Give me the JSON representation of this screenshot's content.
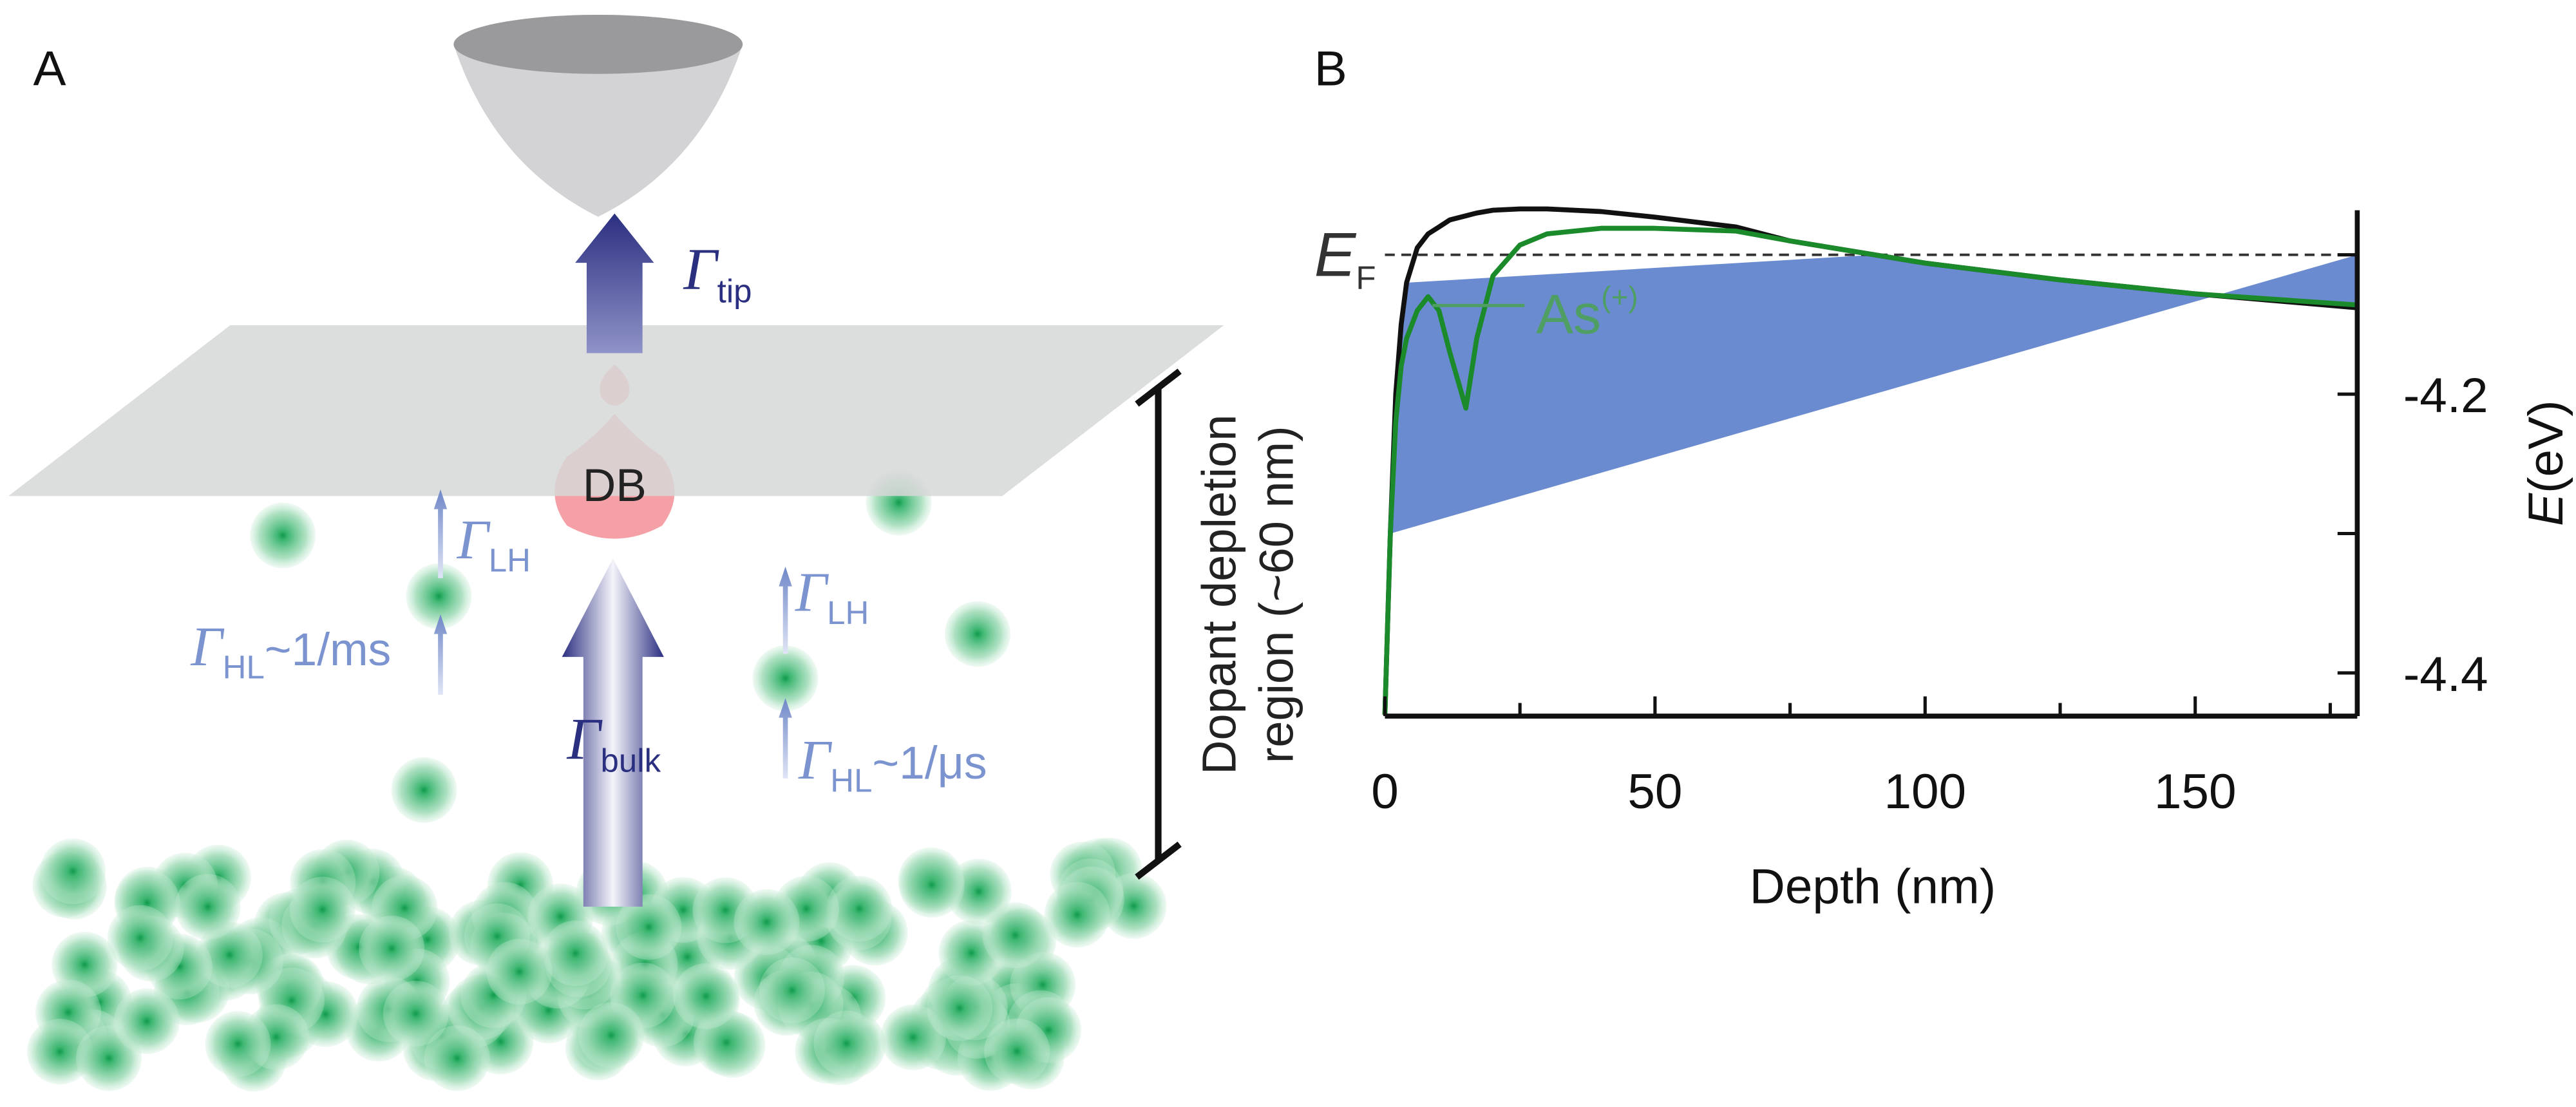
{
  "panel_a": {
    "label": "A",
    "db": "DB",
    "gamma_tip": {
      "symbol": "Γ",
      "subscript": "tip"
    },
    "gamma_bulk": {
      "symbol": "Γ",
      "subscript": "bulk"
    },
    "gamma_lh_left": {
      "symbol": "Γ",
      "subscript": "LH"
    },
    "gamma_hl_left": {
      "symbol": "Γ",
      "subscript": "HL",
      "rate": "~1/ms"
    },
    "gamma_lh_right": {
      "symbol": "Γ",
      "subscript": "LH"
    },
    "gamma_hl_right": {
      "symbol": "Γ",
      "subscript": "HL",
      "rate": "~1/μs"
    },
    "depletion_label": [
      "Dopant depletion",
      "region (~60 nm)"
    ]
  },
  "chart_data": {
    "type": "line",
    "panel_label": "B",
    "x_label": "Depth (nm)",
    "y_label": {
      "symbol": "E",
      "unit": "(eV)"
    },
    "fermi_label": {
      "symbol": "E",
      "subscript": "F"
    },
    "fermi_level": -4.1,
    "annotation": {
      "text": "As",
      "superscript": "(+)"
    },
    "x": [
      0,
      1,
      2,
      3,
      4,
      6,
      8,
      10,
      12,
      15,
      17,
      20,
      25,
      30,
      40,
      50,
      65,
      75,
      100,
      125,
      150,
      180
    ],
    "series": [
      {
        "color": "#111111",
        "values": [
          -4.43,
          -4.3,
          -4.2,
          -4.15,
          -4.12,
          -4.095,
          -4.085,
          -4.08,
          -4.075,
          -4.072,
          -4.07,
          -4.068,
          -4.067,
          -4.067,
          -4.069,
          -4.073,
          -4.08,
          -4.09,
          -4.106,
          -4.118,
          -4.128,
          -4.138
        ]
      },
      {
        "color": "#1a8a2a",
        "values": [
          -4.43,
          -4.3,
          -4.22,
          -4.18,
          -4.16,
          -4.14,
          -4.13,
          -4.14,
          -4.17,
          -4.21,
          -4.16,
          -4.115,
          -4.093,
          -4.085,
          -4.081,
          -4.081,
          -4.083,
          -4.09,
          -4.106,
          -4.118,
          -4.128,
          -4.136
        ]
      }
    ],
    "fill_color": "#6b8bd0",
    "xlim": [
      0,
      180
    ],
    "xticks": [
      0,
      50,
      100,
      150
    ],
    "xminorticks": [
      25,
      75,
      125,
      175
    ],
    "ylim": [
      -4.431,
      -4.068
    ],
    "yticks": [
      -4.2,
      -4.4
    ],
    "yminorticks": [
      -4.1,
      -4.3
    ]
  }
}
